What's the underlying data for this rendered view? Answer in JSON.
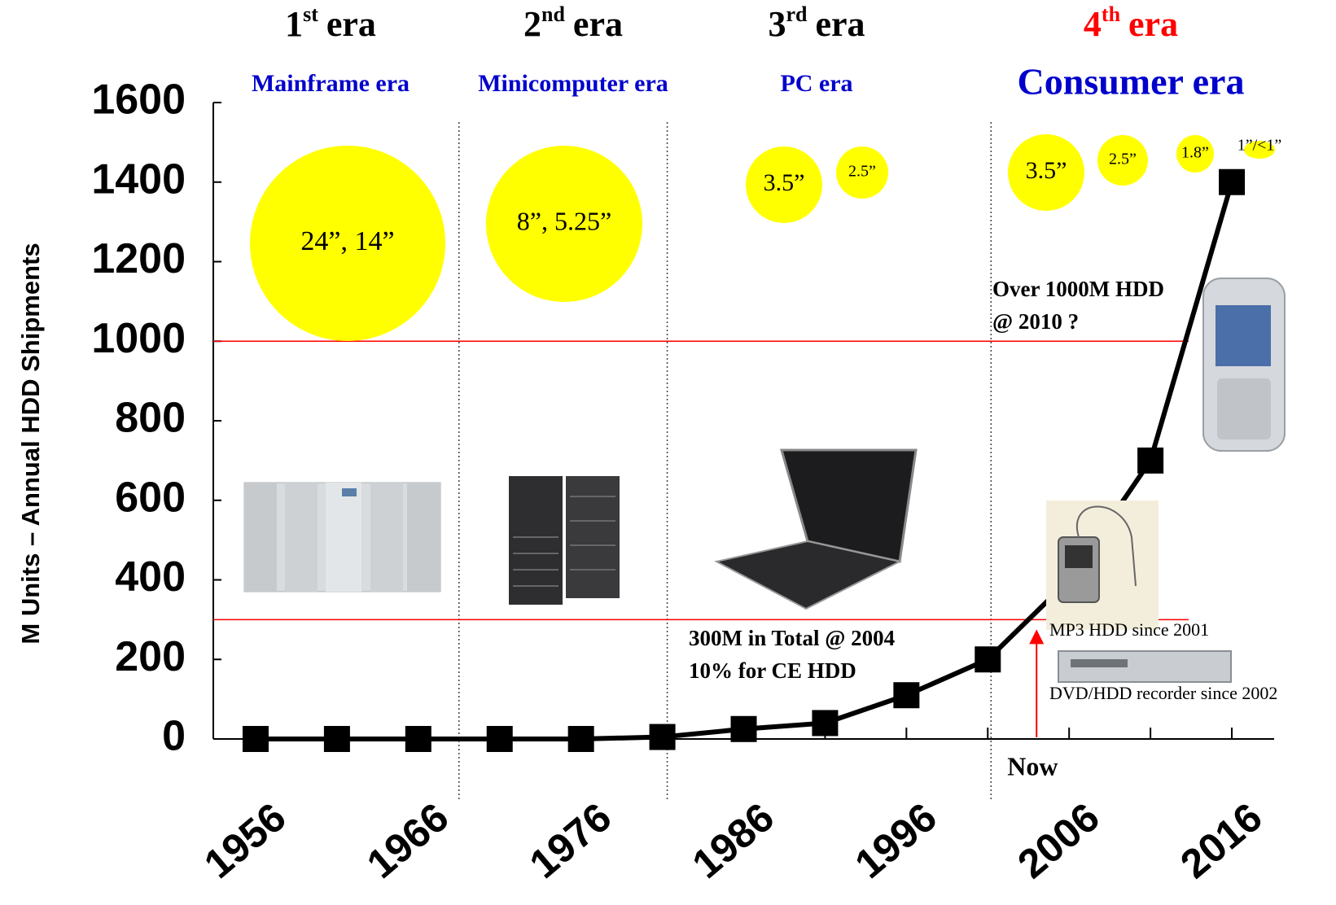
{
  "chart_data": {
    "type": "line",
    "y_label": "M Units – Annual HDD Shipments",
    "x": [
      1956,
      1961,
      1966,
      1971,
      1976,
      1981,
      1986,
      1991,
      1996,
      2001,
      2006,
      2011,
      2016
    ],
    "values": [
      0,
      0,
      0,
      0,
      0,
      5,
      25,
      40,
      110,
      200,
      400,
      700,
      1400
    ],
    "color": "#000000",
    "xlim": [
      1953.4,
      2018.6
    ],
    "xticks": [
      1956,
      1966,
      1976,
      1986,
      1996,
      2006,
      2016
    ],
    "x_minor_ticks": [
      1961,
      1971,
      1981,
      1991,
      2001,
      2011
    ],
    "ylim": [
      0,
      1600
    ],
    "yticks": [
      0,
      200,
      400,
      600,
      800,
      1000,
      1200,
      1400,
      1600
    ],
    "reference_lines": [
      1000,
      300
    ],
    "reference_color": "#ff0000",
    "era_boundaries": [
      1968.5,
      1981.3,
      2001.2
    ],
    "eras": [
      {
        "ordinal": "1",
        "suffix": "st",
        "word": "era",
        "name": "Mainframe era",
        "color": "#000000",
        "bubbles": [
          "24”, 14”"
        ]
      },
      {
        "ordinal": "2",
        "suffix": "nd",
        "word": "era",
        "name": "Minicomputer era",
        "color": "#000000",
        "bubbles": [
          "8”, 5.25”"
        ]
      },
      {
        "ordinal": "3",
        "suffix": "rd",
        "word": "era",
        "name": "PC era",
        "color": "#000000",
        "bubbles": [
          "3.5”",
          "2.5”"
        ]
      },
      {
        "ordinal": "4",
        "suffix": "th",
        "word": "era",
        "name": "Consumer era",
        "color": "#ff0000",
        "bubbles": [
          "3.5”",
          "2.5”",
          "1.8”",
          "1”/<1”"
        ]
      }
    ],
    "era_name_color": "#0000cc",
    "now": {
      "label": "Now",
      "x": 2004
    },
    "annotations": [
      "Over 1000M HDD",
      "@ 2010 ?",
      "300M in Total @ 2004",
      "10% for CE HDD",
      "MP3 HDD since 2001",
      "DVD/HDD recorder since 2002"
    ]
  }
}
